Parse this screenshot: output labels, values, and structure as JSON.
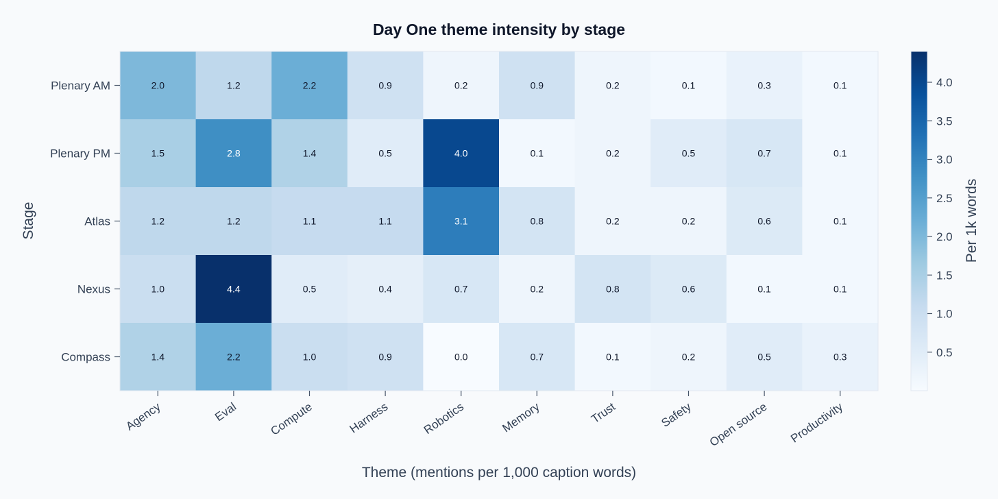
{
  "chart_data": {
    "type": "heatmap",
    "title": "Day One theme intensity by stage",
    "xlabel": "Theme (mentions per 1,000 caption words)",
    "ylabel": "Stage",
    "colorbar_label": "Per 1k words",
    "x_categories": [
      "Agency",
      "Eval",
      "Compute",
      "Harness",
      "Robotics",
      "Memory",
      "Trust",
      "Safety",
      "Open source",
      "Productivity"
    ],
    "y_categories": [
      "Plenary AM",
      "Plenary PM",
      "Atlas",
      "Nexus",
      "Compass"
    ],
    "values": [
      [
        2.0,
        1.2,
        2.2,
        0.9,
        0.2,
        0.9,
        0.2,
        0.1,
        0.3,
        0.1
      ],
      [
        1.5,
        2.8,
        1.4,
        0.5,
        4.0,
        0.1,
        0.2,
        0.5,
        0.7,
        0.1
      ],
      [
        1.2,
        1.2,
        1.1,
        1.1,
        3.1,
        0.8,
        0.2,
        0.2,
        0.6,
        0.1
      ],
      [
        1.0,
        4.4,
        0.5,
        0.4,
        0.7,
        0.2,
        0.8,
        0.6,
        0.1,
        0.1
      ],
      [
        1.4,
        2.2,
        1.0,
        0.9,
        0.0,
        0.7,
        0.1,
        0.2,
        0.5,
        0.3
      ]
    ],
    "value_format_decimals": 1,
    "color_range": [
      0.0,
      4.4
    ],
    "colorbar_ticks": [
      0.5,
      1.0,
      1.5,
      2.0,
      2.5,
      3.0,
      3.5,
      4.0
    ],
    "colormap": "Blues",
    "grid": false,
    "legend": "colorbar-right"
  }
}
